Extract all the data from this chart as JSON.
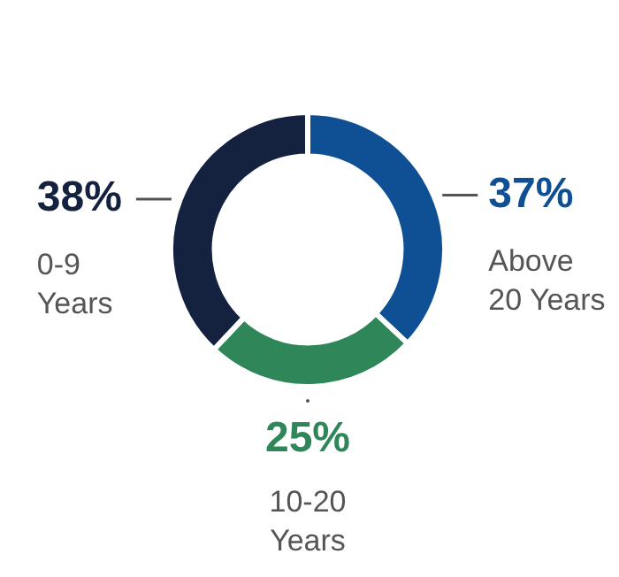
{
  "chart_data": {
    "type": "donut",
    "categories": [
      "Above 20 Years",
      "10-20 Years",
      "0-9 Years"
    ],
    "values": [
      37,
      25,
      38
    ],
    "colors": [
      "#0f4f94",
      "#2e8659",
      "#14223f"
    ],
    "value_labels": [
      "37%",
      "25%",
      "38%"
    ],
    "legend": false
  }
}
